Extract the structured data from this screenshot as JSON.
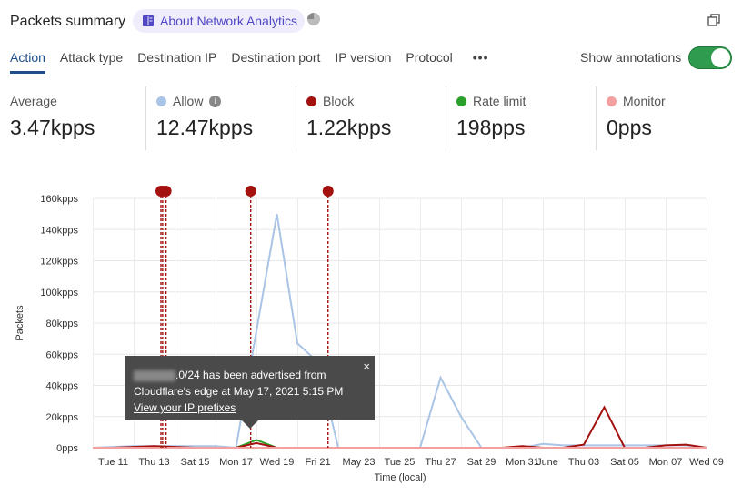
{
  "header": {
    "title": "Packets summary",
    "about_label": "About Network Analytics",
    "pie_icon": "pie-chart-icon",
    "expand_icon": "copy-icon"
  },
  "tabs": [
    {
      "label": "Action",
      "active": true
    },
    {
      "label": "Attack type"
    },
    {
      "label": "Destination IP"
    },
    {
      "label": "Destination port"
    },
    {
      "label": "IP version"
    },
    {
      "label": "Protocol"
    }
  ],
  "more_label": "•••",
  "annotations_toggle": {
    "label": "Show annotations",
    "on": true
  },
  "stats": [
    {
      "label": "Average",
      "value": "3.47kpps"
    },
    {
      "label": "Allow",
      "value": "12.47kpps",
      "color": "#aac4e6",
      "info": "i"
    },
    {
      "label": "Block",
      "value": "1.22kpps",
      "color": "#a3120e"
    },
    {
      "label": "Rate limit",
      "value": "198pps",
      "color": "#2ca02c"
    },
    {
      "label": "Monitor",
      "value": "0pps",
      "color": "#f4a0a0"
    }
  ],
  "tooltip": {
    "text1": ".0/24 has been advertised from",
    "text2": "Cloudflare's edge at May 17, 2021 5:15 PM",
    "link": "View your IP prefixes",
    "close": "×"
  },
  "chart_data": {
    "type": "line",
    "xlabel": "Time (local)",
    "ylabel": "Packets",
    "ylim": [
      0,
      160000
    ],
    "yticks": [
      "0pps",
      "20kpps",
      "40kpps",
      "60kpps",
      "80kpps",
      "100kpps",
      "120kpps",
      "140kpps",
      "160kpps"
    ],
    "xticks": [
      "Tue 11",
      "Thu 13",
      "Sat 15",
      "Mon 17",
      "Wed 19",
      "Fri 21",
      "May 23",
      "Tue 25",
      "Thu 27",
      "Sat 29",
      "Mon 31",
      "June",
      "Thu 03",
      "Sat 05",
      "Mon 07",
      "Wed 09"
    ],
    "x": [
      "May 10",
      "May 11",
      "May 12",
      "May 13",
      "May 14",
      "May 15",
      "May 16",
      "May 17",
      "May 18",
      "May 19",
      "May 20",
      "May 21",
      "May 22",
      "May 23",
      "May 24",
      "May 25",
      "May 26",
      "May 27",
      "May 28",
      "May 29",
      "May 30",
      "May 31",
      "Jun 01",
      "Jun 02",
      "Jun 03",
      "Jun 04",
      "Jun 05",
      "Jun 06",
      "Jun 07",
      "Jun 08",
      "Jun 09"
    ],
    "grid": true,
    "series": [
      {
        "name": "Allow",
        "color": "#aac4e6",
        "values": [
          0,
          500,
          1000,
          1000,
          1000,
          1000,
          1000,
          0,
          75000,
          150000,
          67000,
          55000,
          0,
          0,
          0,
          0,
          0,
          45000,
          20000,
          0,
          0,
          0,
          2500,
          1500,
          1500,
          1500,
          1500,
          1500,
          1500,
          1500,
          0
        ]
      },
      {
        "name": "Block",
        "color": "#a3120e",
        "values": [
          0,
          0,
          500,
          1000,
          500,
          0,
          0,
          0,
          3000,
          0,
          0,
          0,
          0,
          0,
          0,
          0,
          0,
          0,
          0,
          0,
          0,
          1000,
          0,
          0,
          2000,
          26000,
          0,
          0,
          1500,
          2000,
          0
        ]
      },
      {
        "name": "Rate limit",
        "color": "#2ca02c",
        "values": [
          0,
          0,
          0,
          0,
          0,
          0,
          0,
          0,
          5000,
          0,
          0,
          0,
          0,
          0,
          0,
          0,
          0,
          0,
          0,
          0,
          0,
          0,
          0,
          0,
          0,
          0,
          0,
          0,
          0,
          0,
          0
        ]
      },
      {
        "name": "Monitor",
        "color": "#f4a0a0",
        "values": [
          0,
          0,
          0,
          0,
          0,
          0,
          0,
          0,
          0,
          0,
          0,
          0,
          0,
          0,
          0,
          0,
          0,
          0,
          0,
          0,
          0,
          0,
          0,
          0,
          0,
          0,
          0,
          0,
          0,
          0,
          0
        ]
      }
    ],
    "annotations": [
      "May 13 08:00",
      "May 13 10:00",
      "May 13 14:00",
      "May 17 17:15",
      "May 21 12:00"
    ],
    "annotation_color": "#a3120e"
  }
}
